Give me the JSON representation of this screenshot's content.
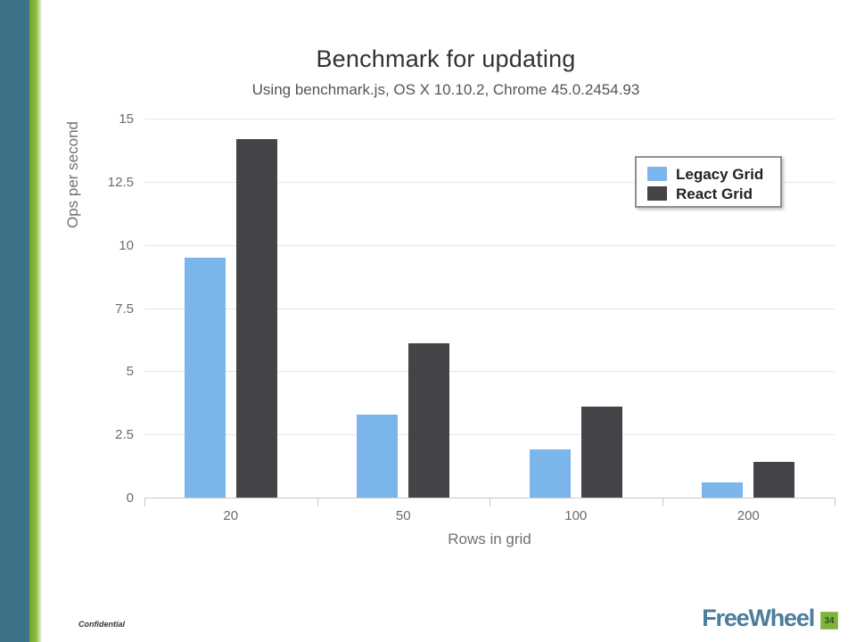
{
  "chart_data": {
    "type": "bar",
    "title": "Benchmark for updating",
    "subtitle": "Using benchmark.js, OS X 10.10.2, Chrome 45.0.2454.93",
    "categories": [
      "20",
      "50",
      "100",
      "200"
    ],
    "series": [
      {
        "name": "Legacy Grid",
        "color": "#7cb5ec",
        "values": [
          9.5,
          3.3,
          1.9,
          0.6
        ]
      },
      {
        "name": "React Grid",
        "color": "#434348",
        "values": [
          14.2,
          6.1,
          3.6,
          1.4
        ]
      }
    ],
    "xlabel": "Rows in grid",
    "ylabel": "Ops per second",
    "ylim": [
      0,
      15
    ],
    "ytick_step": 2.5,
    "grid": true,
    "legend_position": "top-right"
  },
  "footer": {
    "confidential": "Confidential",
    "brand": "FreeWheel",
    "page_number": "34"
  },
  "theme": {
    "accent_teal": "#3e7289",
    "accent_green": "#79af2f",
    "bar_blue": "#7cb5ec",
    "bar_dark": "#434348",
    "gridline": "#e6e6e6",
    "axis_line": "#c9c9c9",
    "brand_blue": "#4b7d9d"
  }
}
